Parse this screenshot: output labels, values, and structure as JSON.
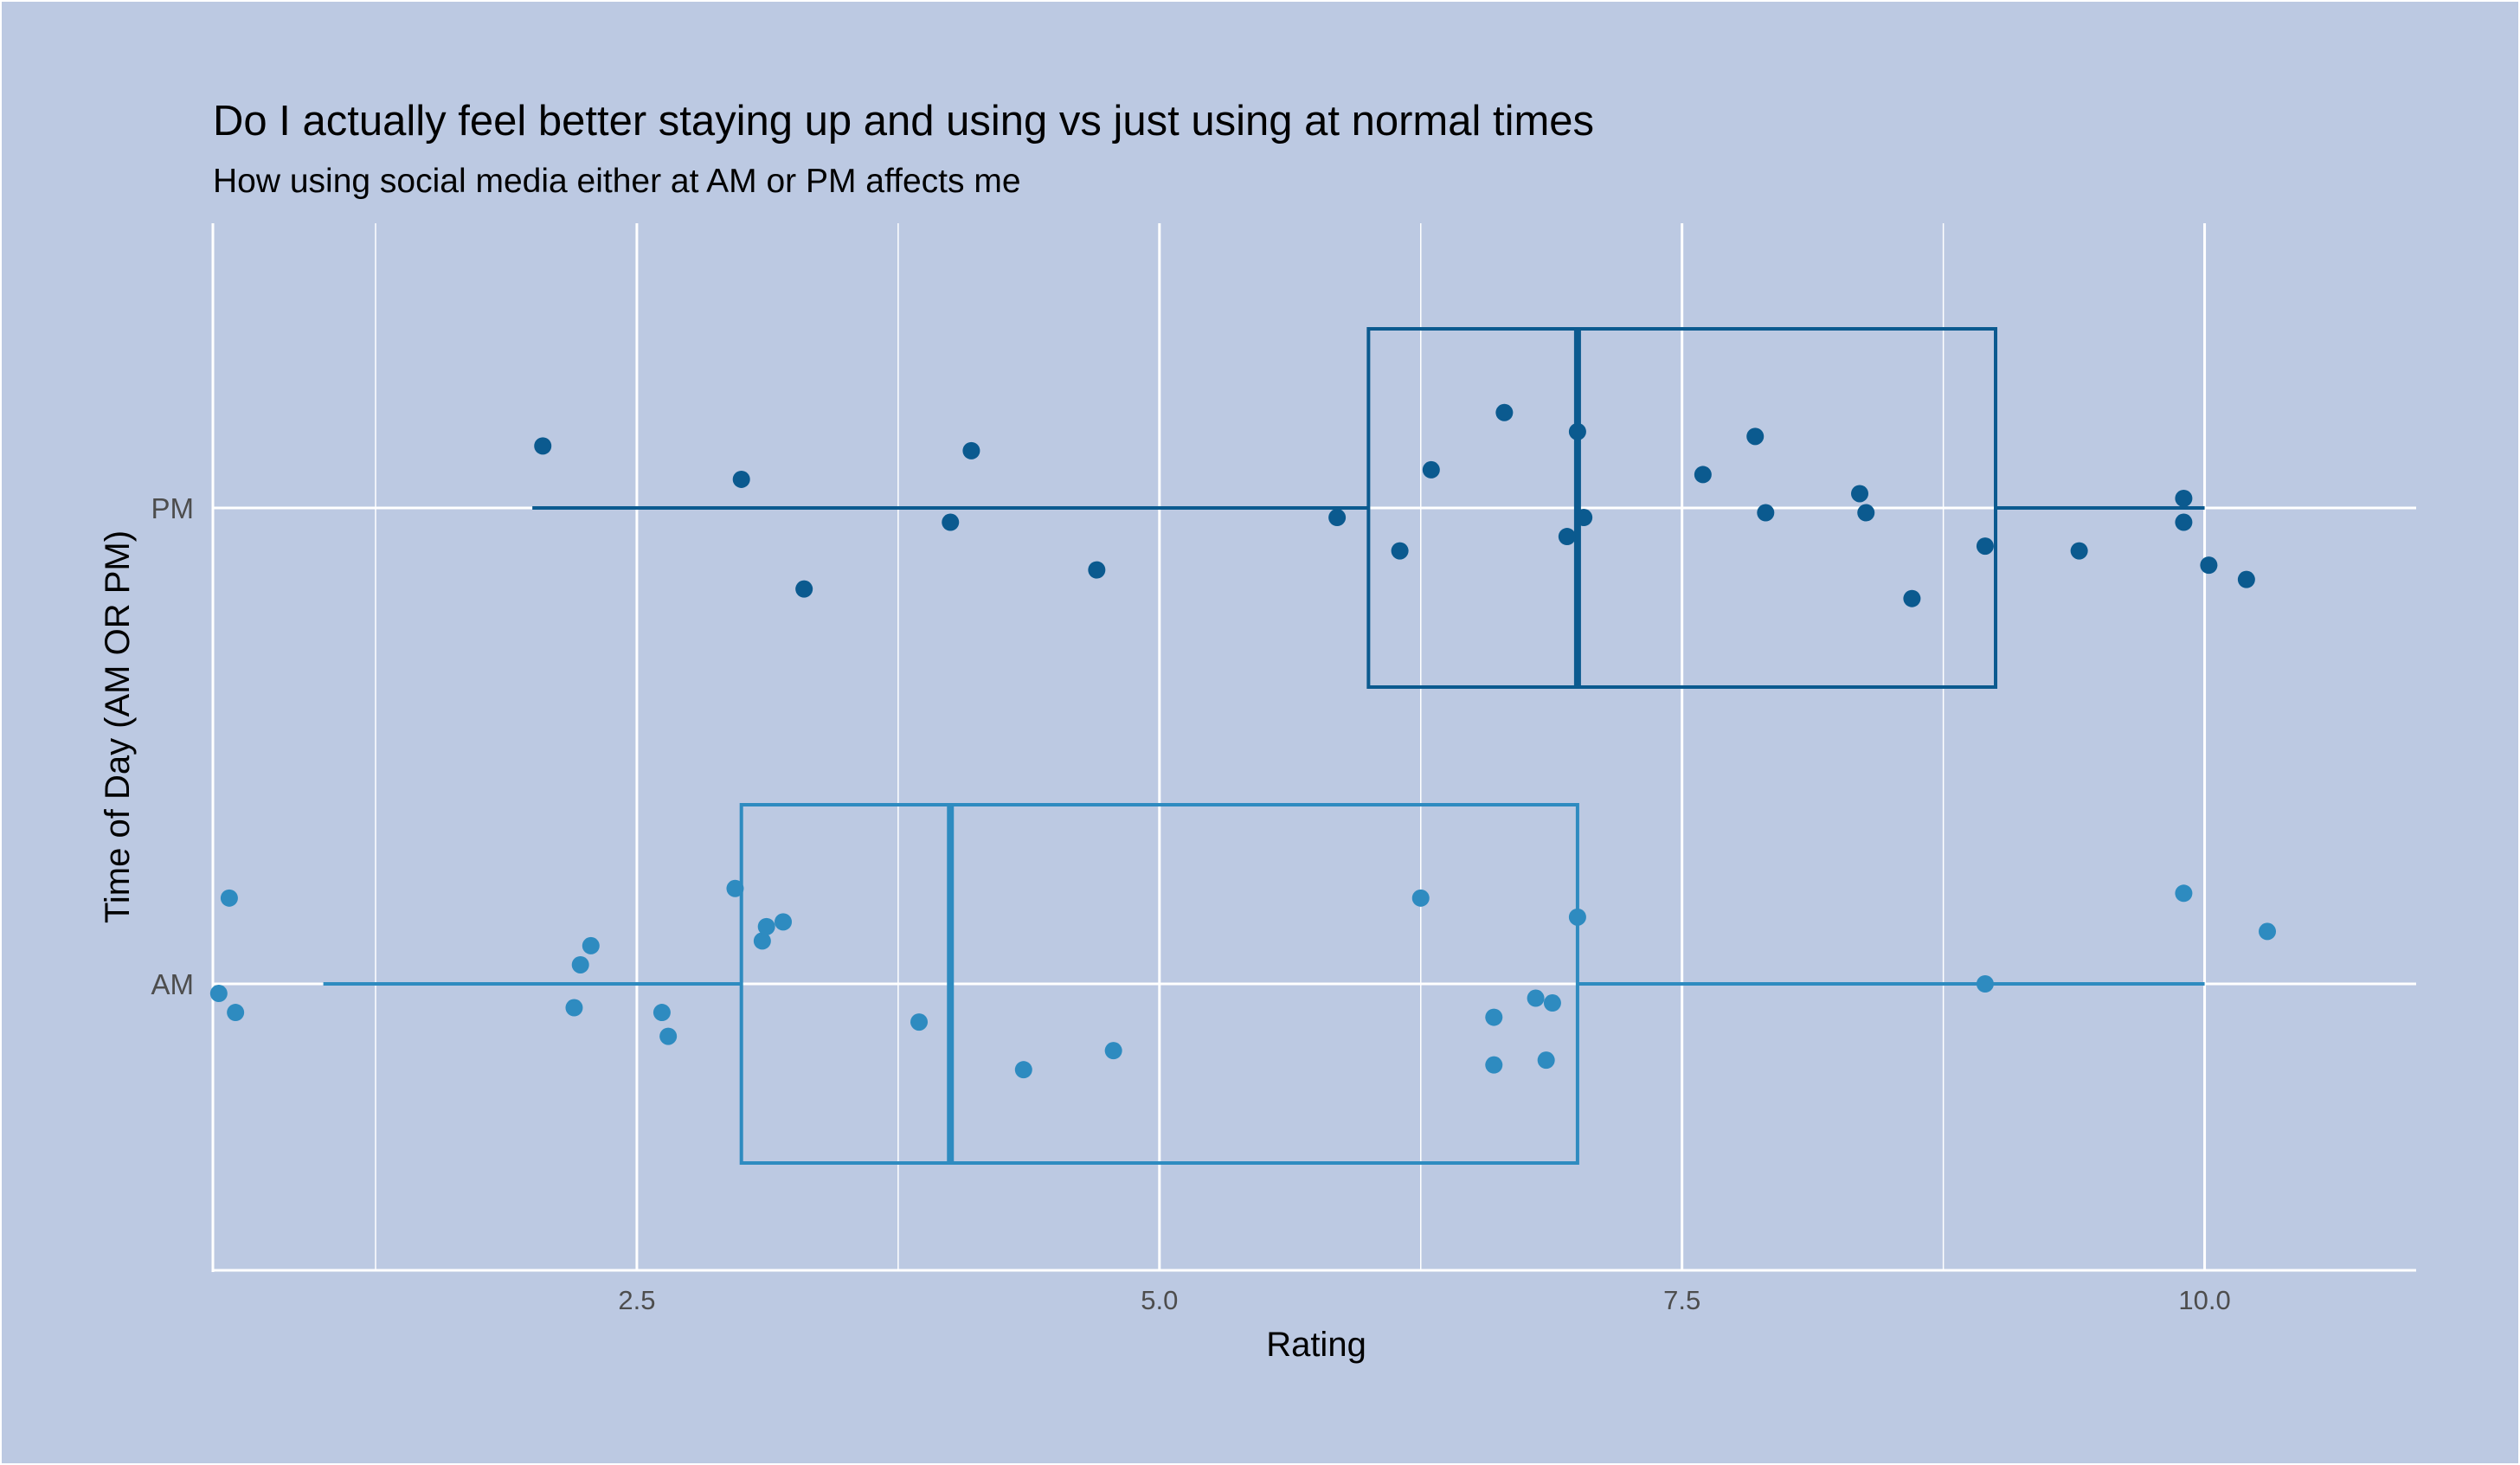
{
  "chart_data": {
    "type": "boxplot",
    "orientation": "horizontal",
    "title": "Do I actually feel better staying up and using vs just using at normal times",
    "subtitle": "How using social media either at AM or PM affects me",
    "xlabel": "Rating",
    "ylabel": "Time of Day (AM OR PM)",
    "xlim": [
      0.0,
      10.8
    ],
    "x_ticks": [
      2.5,
      5.0,
      7.5,
      10.0
    ],
    "x_tick_labels": [
      "2.5",
      "5.0",
      "7.5",
      "10.0"
    ],
    "categories": [
      "AM",
      "PM"
    ],
    "grid": true,
    "legend": "none",
    "colors": {
      "AM": "#2e8bc0",
      "PM": "#0b5a8f",
      "background": "#bcc9e2",
      "grid": "#ffffff"
    },
    "series": [
      {
        "category": "PM",
        "box": {
          "min": 2,
          "q1": 6,
          "median": 7,
          "q3": 9,
          "max": 10
        },
        "points": [
          {
            "x": 2.05,
            "jitter": 0.13
          },
          {
            "x": 3.0,
            "jitter": 0.06
          },
          {
            "x": 3.3,
            "jitter": -0.17
          },
          {
            "x": 4.0,
            "jitter": -0.03
          },
          {
            "x": 4.1,
            "jitter": 0.12
          },
          {
            "x": 4.7,
            "jitter": -0.13
          },
          {
            "x": 5.85,
            "jitter": -0.02
          },
          {
            "x": 6.15,
            "jitter": -0.09
          },
          {
            "x": 6.3,
            "jitter": 0.08
          },
          {
            "x": 6.65,
            "jitter": 0.2
          },
          {
            "x": 6.95,
            "jitter": -0.06
          },
          {
            "x": 7.0,
            "jitter": 0.16
          },
          {
            "x": 7.03,
            "jitter": -0.02
          },
          {
            "x": 7.6,
            "jitter": 0.07
          },
          {
            "x": 7.85,
            "jitter": 0.15
          },
          {
            "x": 7.9,
            "jitter": -0.01
          },
          {
            "x": 8.35,
            "jitter": 0.03
          },
          {
            "x": 8.38,
            "jitter": -0.01
          },
          {
            "x": 8.6,
            "jitter": -0.19
          },
          {
            "x": 8.95,
            "jitter": -0.08
          },
          {
            "x": 9.4,
            "jitter": -0.09
          },
          {
            "x": 9.9,
            "jitter": 0.02
          },
          {
            "x": 9.9,
            "jitter": -0.03
          },
          {
            "x": 10.02,
            "jitter": -0.12
          },
          {
            "x": 10.2,
            "jitter": -0.15
          }
        ]
      },
      {
        "category": "AM",
        "box": {
          "min": 1,
          "q1": 3,
          "median": 4,
          "q3": 7,
          "max": 10
        },
        "points": [
          {
            "x": 0.5,
            "jitter": -0.02
          },
          {
            "x": 0.55,
            "jitter": 0.18
          },
          {
            "x": 0.58,
            "jitter": -0.06
          },
          {
            "x": 2.2,
            "jitter": -0.05
          },
          {
            "x": 2.23,
            "jitter": 0.04
          },
          {
            "x": 2.28,
            "jitter": 0.08
          },
          {
            "x": 2.62,
            "jitter": -0.06
          },
          {
            "x": 2.65,
            "jitter": -0.11
          },
          {
            "x": 2.97,
            "jitter": 0.2
          },
          {
            "x": 3.1,
            "jitter": 0.09
          },
          {
            "x": 3.12,
            "jitter": 0.12
          },
          {
            "x": 3.2,
            "jitter": 0.13
          },
          {
            "x": 3.85,
            "jitter": -0.08
          },
          {
            "x": 4.35,
            "jitter": -0.18
          },
          {
            "x": 4.78,
            "jitter": -0.14
          },
          {
            "x": 6.25,
            "jitter": 0.18
          },
          {
            "x": 6.6,
            "jitter": -0.07
          },
          {
            "x": 6.6,
            "jitter": -0.17
          },
          {
            "x": 6.8,
            "jitter": -0.03
          },
          {
            "x": 6.85,
            "jitter": -0.16
          },
          {
            "x": 6.88,
            "jitter": -0.04
          },
          {
            "x": 7.0,
            "jitter": 0.14
          },
          {
            "x": 8.95,
            "jitter": 0.0
          },
          {
            "x": 9.9,
            "jitter": 0.19
          },
          {
            "x": 10.3,
            "jitter": 0.11
          }
        ]
      }
    ]
  }
}
